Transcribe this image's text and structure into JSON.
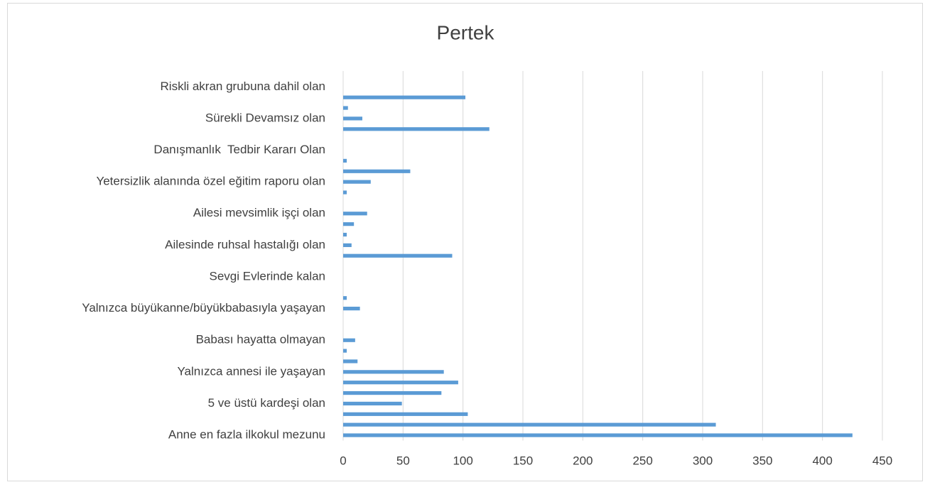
{
  "chart_data": {
    "type": "bar",
    "orientation": "horizontal",
    "title": "Pertek",
    "categories": [
      "Anne en fazla ilkokul mezunu",
      null,
      null,
      "5 ve üstü kardeşi olan",
      null,
      null,
      "Yalnızca annesi ile yaşayan",
      null,
      null,
      "Babası hayatta olmayan",
      null,
      null,
      "Yalnızca büyükanne/büyükbabasıyla yaşayan",
      null,
      null,
      "Sevgi Evlerinde kalan",
      null,
      null,
      "Ailesinde ruhsal hastalığı olan",
      null,
      null,
      "Ailesi mevsimlik işçi olan",
      null,
      null,
      "Yetersizlik alanında özel eğitim raporu olan",
      null,
      null,
      "Danışmanlık  Tedbir Kararı Olan",
      null,
      null,
      "Sürekli Devamsız olan",
      null,
      null,
      "Riskli akran grubuna dahil olan",
      null
    ],
    "values": [
      425,
      311,
      104,
      49,
      82,
      96,
      84,
      12,
      3,
      10,
      0,
      0,
      14,
      3,
      0,
      0,
      0,
      91,
      7,
      3,
      9,
      20,
      0,
      3,
      23,
      56,
      3,
      0,
      0,
      122,
      16,
      4,
      102,
      0,
      0
    ],
    "color": "#5b9bd5",
    "xlim": [
      0,
      450
    ],
    "xticks": [
      0,
      50,
      100,
      150,
      200,
      250,
      300,
      350,
      400,
      450
    ],
    "grid": true
  }
}
